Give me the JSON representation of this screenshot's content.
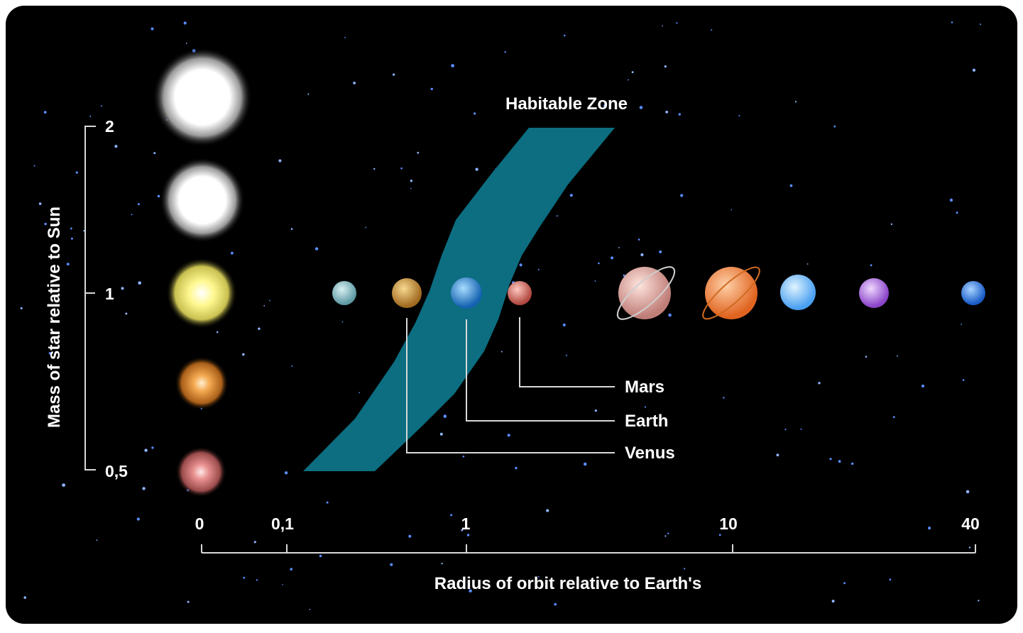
{
  "zone_label": "Habitable Zone",
  "colors": {
    "background": "#000000",
    "zone": "#0c6e80",
    "axis": "#d8d8d8"
  },
  "y_axis": {
    "title": "Mass of star relative to Sun",
    "ticks": [
      "2",
      "1",
      "0,5"
    ]
  },
  "x_axis": {
    "title": "Radius of orbit relative to Earth's",
    "ticks": [
      "0",
      "0,1",
      "1",
      "10",
      "40"
    ]
  },
  "planet_labels": {
    "mars": "Mars",
    "earth": "Earth",
    "venus": "Venus"
  },
  "stars": [
    {
      "name": "white-star-large",
      "color": "#ffffff"
    },
    {
      "name": "white-star",
      "color": "#ffffff"
    },
    {
      "name": "yellow-sun",
      "color": "#fff47a"
    },
    {
      "name": "orange-star",
      "color": "#f0a040"
    },
    {
      "name": "red-star",
      "color": "#e07a7a"
    }
  ],
  "planets": [
    {
      "name": "mercury",
      "color": "#8fc4cc"
    },
    {
      "name": "venus",
      "color": "#d8a048"
    },
    {
      "name": "earth",
      "color": "#3a9ee0"
    },
    {
      "name": "mars",
      "color": "#e0706a"
    },
    {
      "name": "saturn",
      "color": "#f0b0a8"
    },
    {
      "name": "jupiter",
      "color": "#ff8a44"
    },
    {
      "name": "uranus",
      "color": "#7ec8ff"
    },
    {
      "name": "neptune",
      "color": "#b070e8"
    },
    {
      "name": "pluto",
      "color": "#3d8cf0"
    }
  ]
}
